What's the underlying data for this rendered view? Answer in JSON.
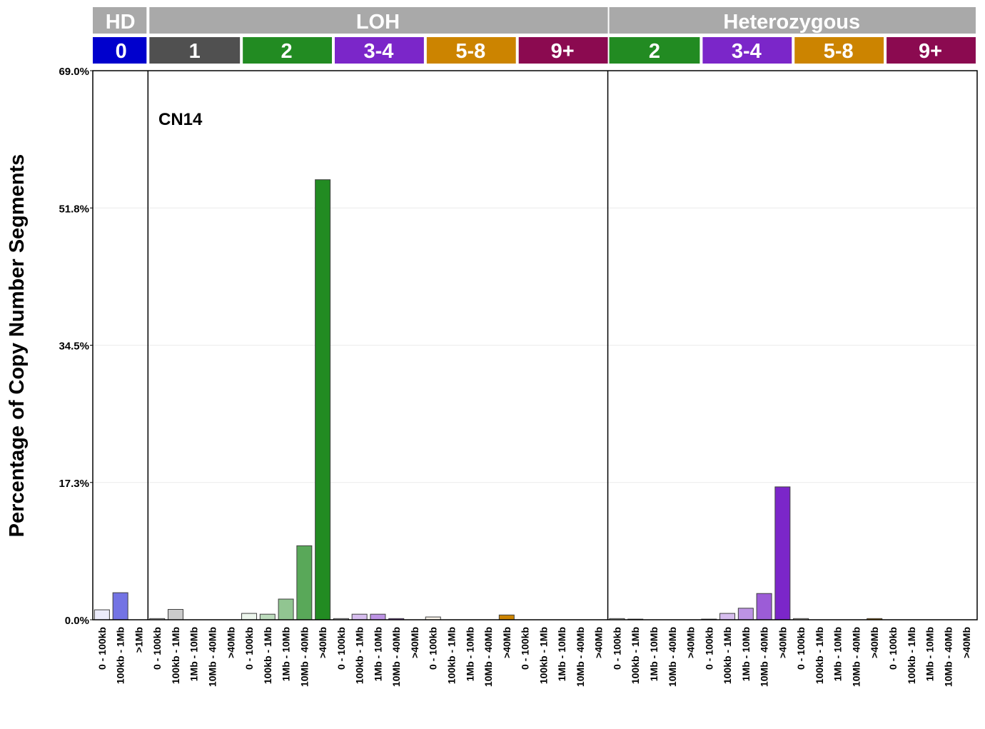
{
  "chart_data": {
    "type": "bar",
    "annotation": "CN14",
    "ylabel": "Percentage of Copy Number Segments",
    "ylim": [
      0,
      69.0
    ],
    "yticks": [
      "0.0%",
      "17.3%",
      "34.5%",
      "51.8%",
      "69.0%"
    ],
    "ytick_values": [
      0,
      17.25,
      34.5,
      51.75,
      69.0
    ],
    "grid": true,
    "groups": [
      {
        "name": "HD",
        "subgroups": [
          {
            "name": "0",
            "color": "#0000cd",
            "categories": [
              "0 - 100kb",
              "100kb - 1Mb",
              ">1Mb"
            ],
            "values": [
              1.25,
              3.4,
              0
            ]
          }
        ]
      },
      {
        "name": "LOH",
        "subgroups": [
          {
            "name": "1",
            "color": "#505050",
            "categories": [
              "0 - 100kb",
              "100kb - 1Mb",
              "1Mb - 10Mb",
              "10Mb - 40Mb",
              ">40Mb"
            ],
            "values": [
              0.15,
              1.3,
              0,
              0,
              0
            ]
          },
          {
            "name": "2",
            "color": "#228b22",
            "categories": [
              "0 - 100kb",
              "100kb - 1Mb",
              "1Mb - 10Mb",
              "10Mb - 40Mb",
              ">40Mb"
            ],
            "values": [
              0.8,
              0.7,
              2.6,
              9.3,
              55.3
            ]
          },
          {
            "name": "3-4",
            "color": "#7b26c9",
            "categories": [
              "0 - 100kb",
              "100kb - 1Mb",
              "1Mb - 10Mb",
              "10Mb - 40Mb",
              ">40Mb"
            ],
            "values": [
              0.15,
              0.7,
              0.7,
              0.15,
              0
            ]
          },
          {
            "name": "5-8",
            "color": "#cc8400",
            "categories": [
              "0 - 100kb",
              "100kb - 1Mb",
              "1Mb - 10Mb",
              "10Mb - 40Mb",
              ">40Mb"
            ],
            "values": [
              0.35,
              0,
              0,
              0,
              0.6
            ]
          },
          {
            "name": "9+",
            "color": "#8b0a50",
            "categories": [
              "0 - 100kb",
              "100kb - 1Mb",
              "1Mb - 10Mb",
              "10Mb - 40Mb",
              ">40Mb"
            ],
            "values": [
              0,
              0,
              0,
              0,
              0
            ]
          }
        ]
      },
      {
        "name": "Heterozygous",
        "subgroups": [
          {
            "name": "2",
            "color": "#228b22",
            "categories": [
              "0 - 100kb",
              "100kb - 1Mb",
              "1Mb - 10Mb",
              "10Mb - 40Mb",
              ">40Mb"
            ],
            "values": [
              0.15,
              0.08,
              0,
              0,
              0
            ]
          },
          {
            "name": "3-4",
            "color": "#7b26c9",
            "categories": [
              "0 - 100kb",
              "100kb - 1Mb",
              "1Mb - 10Mb",
              "10Mb - 40Mb",
              ">40Mb"
            ],
            "values": [
              0.08,
              0.8,
              1.45,
              3.3,
              16.7
            ]
          },
          {
            "name": "5-8",
            "color": "#cc8400",
            "categories": [
              "0 - 100kb",
              "100kb - 1Mb",
              "1Mb - 10Mb",
              "10Mb - 40Mb",
              ">40Mb"
            ],
            "values": [
              0.15,
              0,
              0,
              0,
              0.15
            ]
          },
          {
            "name": "9+",
            "color": "#8b0a50",
            "categories": [
              "0 - 100kb",
              "100kb - 1Mb",
              "1Mb - 10Mb",
              "10Mb - 40Mb",
              ">40Mb"
            ],
            "values": [
              0,
              0,
              0,
              0,
              0
            ]
          }
        ]
      }
    ],
    "header_color": "#a9a9a9"
  }
}
